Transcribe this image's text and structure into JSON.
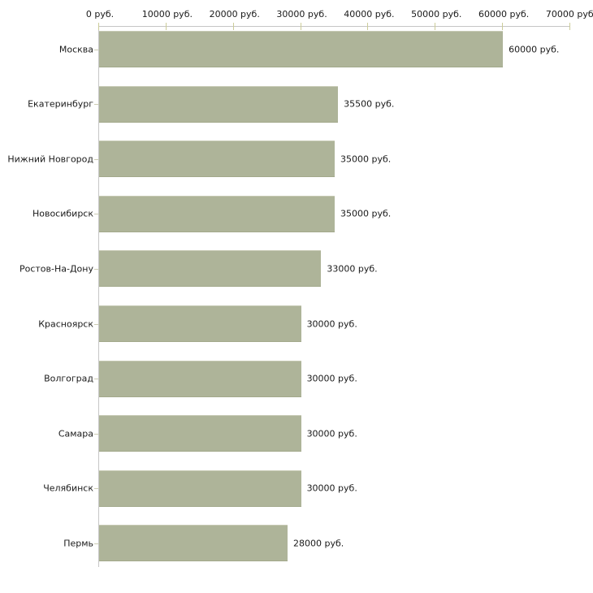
{
  "chart_data": {
    "type": "bar",
    "orientation": "horizontal",
    "title": "",
    "xlabel": "",
    "ylabel": "",
    "xlim": [
      0,
      70000
    ],
    "x_tick_values": [
      0,
      10000,
      20000,
      30000,
      40000,
      50000,
      60000,
      70000
    ],
    "x_tick_labels": [
      "0 руб.",
      "10000 руб.",
      "20000 руб.",
      "30000 руб.",
      "40000 руб.",
      "50000 руб.",
      "60000 руб.",
      "70000 руб."
    ],
    "categories": [
      "Москва",
      "Екатеринбург",
      "Нижний Новгород",
      "Новосибирск",
      "Ростов-На-Дону",
      "Красноярск",
      "Волгоград",
      "Самара",
      "Челябинск",
      "Пермь"
    ],
    "values": [
      60000,
      35500,
      35000,
      35000,
      33000,
      30000,
      30000,
      30000,
      30000,
      28000
    ],
    "value_labels": [
      "60000 руб.",
      "35500 руб.",
      "35000 руб.",
      "35000 руб.",
      "33000 руб.",
      "30000 руб.",
      "30000 руб.",
      "30000 руб.",
      "30000 руб.",
      "28000 руб."
    ],
    "legend": null,
    "grid": false,
    "colors": {
      "bar_fill": "#aeb499",
      "bar_top_edge": "#c6c9b3",
      "bar_bottom_edge": "#a3a98c",
      "axis_line": "#c6c6c6",
      "tick_mark": "#cccc99",
      "category_tick": "#ccccb3",
      "text": "#1a1a1a",
      "background": "#ffffff"
    }
  }
}
